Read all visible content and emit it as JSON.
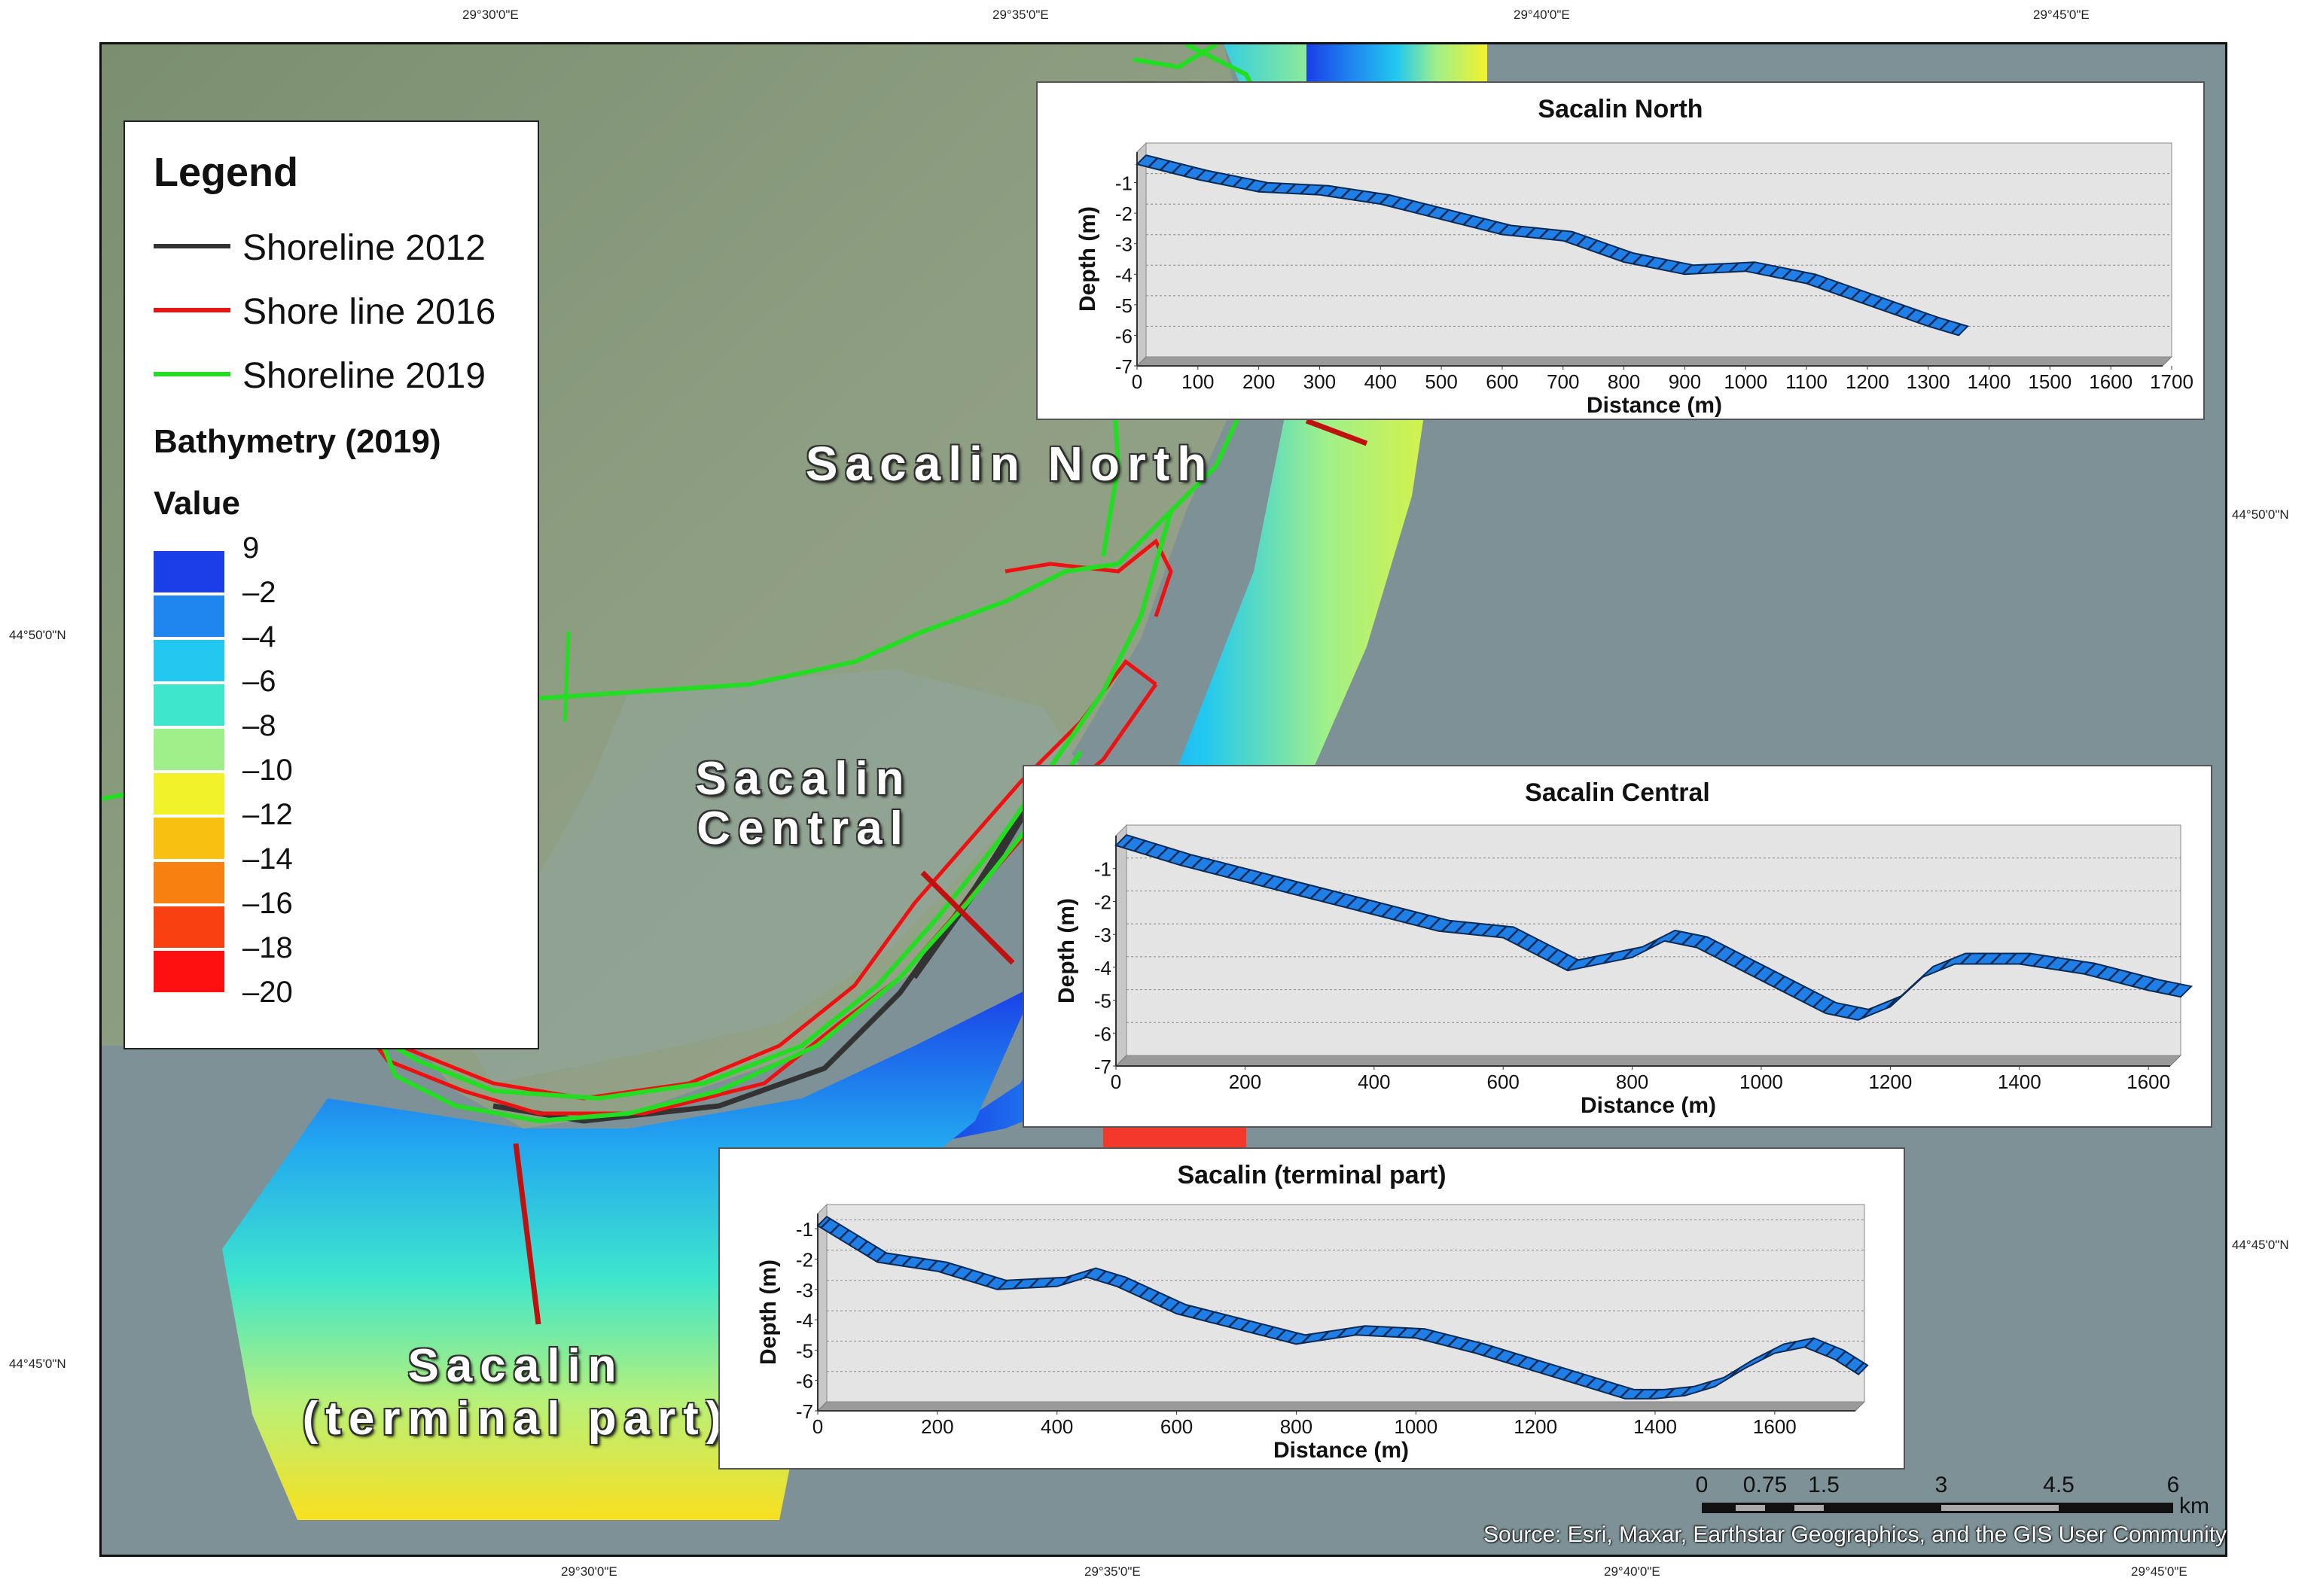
{
  "graticule": {
    "top": [
      "29°30'0\"E",
      "29°35'0\"E",
      "29°40'0\"E",
      "29°45'0\"E"
    ],
    "bottom": [
      "29°30'0\"E",
      "29°35'0\"E",
      "29°40'0\"E",
      "29°45'0\"E"
    ],
    "left": [
      "44°50'0\"N",
      "44°45'0\"N"
    ],
    "right": [
      "44°50'0\"N",
      "44°45'0\"N"
    ]
  },
  "legend": {
    "title": "Legend",
    "lines": [
      {
        "label": "Shoreline 2012",
        "color": "#333333"
      },
      {
        "label": "Shore line 2016",
        "color": "#ee1111"
      },
      {
        "label": "Shoreline 2019",
        "color": "#22dd22"
      }
    ],
    "bathy_title": "Bathymetry (2019)",
    "value_title": "Value",
    "classes": [
      {
        "label": "9",
        "color": "#1a3ee8"
      },
      {
        "label": "–2",
        "color": "#1f86f0"
      },
      {
        "label": "–4",
        "color": "#22c8f0"
      },
      {
        "label": "–6",
        "color": "#3ee6cc"
      },
      {
        "label": "–8",
        "color": "#9ff08a"
      },
      {
        "label": "–10",
        "color": "#f2f22a"
      },
      {
        "label": "–12",
        "color": "#f8c010"
      },
      {
        "label": "–14",
        "color": "#f88010"
      },
      {
        "label": "–16",
        "color": "#f84010"
      },
      {
        "label": "–18",
        "color": "#ff1010"
      },
      {
        "label": "–20",
        "color": "#ff0000"
      }
    ]
  },
  "labels": {
    "north": "Sacalin North",
    "central_1": "Sacalin",
    "central_2": "Central",
    "terminal_1": "Sacalin",
    "terminal_2": "(terminal part)"
  },
  "scalebar": {
    "ticks": [
      "0",
      "0.75",
      "1.5",
      "3",
      "4.5",
      "6"
    ],
    "unit": "km"
  },
  "source": "Source: Esri, Maxar, Earthstar Geographics, and the GIS User Community",
  "chart_data": [
    {
      "type": "area",
      "title": "Sacalin North",
      "xlabel": "Distance (m)",
      "ylabel": "Depth (m)",
      "xlim": [
        0,
        1700
      ],
      "ylim": [
        -7,
        0
      ],
      "xticks": [
        "0",
        "100",
        "200",
        "300",
        "400",
        "500",
        "600",
        "700",
        "800",
        "900",
        "1000",
        "1100",
        "1200",
        "1300",
        "1400",
        "1500",
        "1600",
        "1700"
      ],
      "yticks": [
        "-1",
        "-2",
        "-3",
        "-4",
        "-5",
        "-6",
        "-7"
      ],
      "series": [
        {
          "x": [
            0,
            100,
            200,
            300,
            400,
            500,
            600,
            700,
            800,
            900,
            1000,
            1100,
            1200,
            1300,
            1350
          ],
          "y": [
            -0.4,
            -0.9,
            -1.3,
            -1.4,
            -1.7,
            -2.2,
            -2.7,
            -2.9,
            -3.6,
            -4.0,
            -3.9,
            -4.3,
            -5.0,
            -5.7,
            -6.0
          ],
          "color": "#1f7fe6"
        }
      ]
    },
    {
      "type": "area",
      "title": "Sacalin Central",
      "xlabel": "Distance (m)",
      "ylabel": "Depth (m)",
      "xlim": [
        0,
        1650
      ],
      "ylim": [
        -7,
        0
      ],
      "xticks": [
        "0",
        "200",
        "400",
        "600",
        "800",
        "1000",
        "1200",
        "1400",
        "1600"
      ],
      "yticks": [
        "-1",
        "-2",
        "-3",
        "-4",
        "-5",
        "-6",
        "-7"
      ],
      "series": [
        {
          "x": [
            0,
            100,
            200,
            300,
            400,
            500,
            600,
            650,
            700,
            800,
            850,
            900,
            1000,
            1100,
            1150,
            1200,
            1250,
            1300,
            1400,
            1500,
            1600,
            1650
          ],
          "y": [
            -0.3,
            -0.9,
            -1.4,
            -1.9,
            -2.4,
            -2.9,
            -3.1,
            -3.6,
            -4.1,
            -3.7,
            -3.2,
            -3.4,
            -4.4,
            -5.4,
            -5.6,
            -5.2,
            -4.3,
            -3.9,
            -3.9,
            -4.2,
            -4.7,
            -4.9
          ],
          "color": "#1f7fe6"
        }
      ]
    },
    {
      "type": "area",
      "title": "Sacalin (terminal part)",
      "xlabel": "Distance (m)",
      "ylabel": "Depth (m)",
      "xlim": [
        0,
        1750
      ],
      "ylim": [
        -7,
        -0.5
      ],
      "xticks": [
        "0",
        "200",
        "400",
        "600",
        "800",
        "1000",
        "1200",
        "1400",
        "1600"
      ],
      "yticks": [
        "-1",
        "-2",
        "-3",
        "-4",
        "-5",
        "-6",
        "-7"
      ],
      "series": [
        {
          "x": [
            0,
            100,
            200,
            300,
            400,
            450,
            500,
            600,
            700,
            800,
            900,
            1000,
            1100,
            1200,
            1300,
            1350,
            1400,
            1450,
            1500,
            1550,
            1600,
            1650,
            1700,
            1740
          ],
          "y": [
            -0.9,
            -2.1,
            -2.4,
            -3.0,
            -2.9,
            -2.6,
            -2.9,
            -3.8,
            -4.3,
            -4.8,
            -4.5,
            -4.6,
            -5.1,
            -5.7,
            -6.3,
            -6.6,
            -6.6,
            -6.5,
            -6.2,
            -5.6,
            -5.1,
            -4.9,
            -5.3,
            -5.8
          ],
          "color": "#1f7fe6"
        }
      ]
    }
  ]
}
